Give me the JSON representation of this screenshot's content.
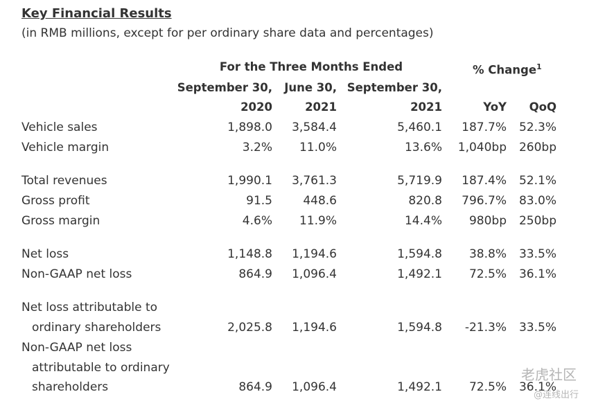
{
  "header": {
    "title": "Key Financial Results",
    "subtitle": "(in RMB millions, except for per ordinary share data and percentages)"
  },
  "table": {
    "period_group": "For the Three Months Ended",
    "change_group": "% Change",
    "change_note": "1",
    "columns": [
      {
        "date": "September 30,",
        "year": "2020"
      },
      {
        "date": "June 30,",
        "year": "2021"
      },
      {
        "date": "September 30,",
        "year": "2021"
      },
      {
        "year": "YoY"
      },
      {
        "year": "QoQ"
      }
    ],
    "rows": [
      {
        "label": [
          "Vehicle sales"
        ],
        "values": [
          "1,898.0",
          "3,584.4",
          "5,460.1",
          "187.7%",
          "52.3%"
        ]
      },
      {
        "label": [
          "Vehicle margin"
        ],
        "values": [
          "3.2%",
          "11.0%",
          "13.6%",
          "1,040bp",
          "260bp"
        ]
      },
      {
        "label": [
          "Total revenues"
        ],
        "values": [
          "1,990.1",
          "3,761.3",
          "5,719.9",
          "187.4%",
          "52.1%"
        ]
      },
      {
        "label": [
          "Gross profit"
        ],
        "values": [
          "91.5",
          "448.6",
          "820.8",
          "796.7%",
          "83.0%"
        ]
      },
      {
        "label": [
          "Gross margin"
        ],
        "values": [
          "4.6%",
          "11.9%",
          "14.4%",
          "980bp",
          "250bp"
        ]
      },
      {
        "label": [
          "Net loss"
        ],
        "values": [
          "1,148.8",
          "1,194.6",
          "1,594.8",
          "38.8%",
          "33.5%"
        ]
      },
      {
        "label": [
          "Non-GAAP net loss"
        ],
        "values": [
          "864.9",
          "1,096.4",
          "1,492.1",
          "72.5%",
          "36.1%"
        ]
      },
      {
        "label": [
          "Net loss attributable to",
          "ordinary shareholders"
        ],
        "values": [
          "2,025.8",
          "1,194.6",
          "1,594.8",
          "-21.3%",
          "33.5%"
        ]
      },
      {
        "label": [
          "Non-GAAP net loss",
          "attributable to ordinary",
          "shareholders"
        ],
        "values": [
          "864.9",
          "1,096.4",
          "1,492.1",
          "72.5%",
          "36.1%"
        ]
      }
    ]
  },
  "watermark": {
    "brand": "老虎社区",
    "source": "@连线出行"
  }
}
